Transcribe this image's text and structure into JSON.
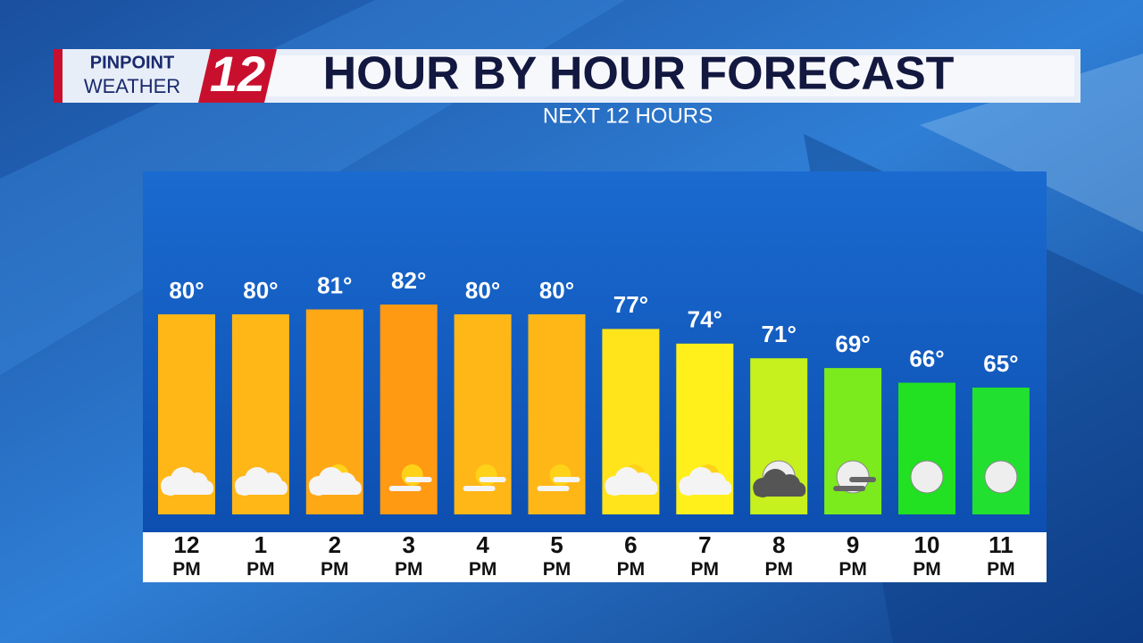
{
  "brand": {
    "line1": "PINPOINT",
    "line2": "WEATHER",
    "channel": "12"
  },
  "chart_data": {
    "type": "bar",
    "title": "HOUR BY HOUR FORECAST",
    "subtitle": "NEXT 12 HOURS",
    "categories": [
      "12 PM",
      "1 PM",
      "2 PM",
      "3 PM",
      "4 PM",
      "5 PM",
      "6 PM",
      "7 PM",
      "8 PM",
      "9 PM",
      "10 PM",
      "11 PM"
    ],
    "values": [
      80,
      80,
      81,
      82,
      80,
      80,
      77,
      74,
      71,
      69,
      66,
      65
    ],
    "value_labels": [
      "80°",
      "80°",
      "81°",
      "82°",
      "80°",
      "80°",
      "77°",
      "74°",
      "71°",
      "69°",
      "66°",
      "65°"
    ],
    "colors": [
      "#ffb717",
      "#ffb717",
      "#ffa816",
      "#ff9a12",
      "#ffb717",
      "#ffb717",
      "#ffe41c",
      "#fff01c",
      "#c6f01e",
      "#7ceb1e",
      "#22e022",
      "#22e030"
    ]
  }
}
